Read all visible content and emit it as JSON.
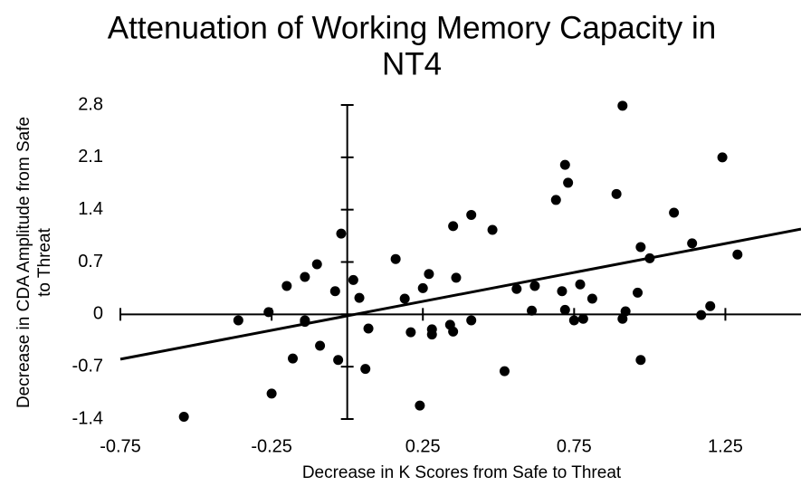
{
  "chart_data": {
    "type": "scatter",
    "title": [
      "Attenuation of Working Memory Capacity in",
      "NT4"
    ],
    "xlabel": "Decrease in K Scores from Safe to Threat",
    "ylabel": [
      "Decrease in CDA Amplitude from Safe",
      "to Threat"
    ],
    "xlim": [
      -0.75,
      1.5
    ],
    "ylim": [
      -1.4,
      2.8
    ],
    "xticks": [
      -0.75,
      -0.25,
      0.25,
      0.75,
      1.25
    ],
    "yticks": [
      2.8,
      2.1,
      1.4,
      0.7,
      0,
      -0.7,
      -1.4
    ],
    "color": "#000000",
    "x": [
      -0.54,
      -0.36,
      -0.26,
      -0.25,
      -0.2,
      -0.18,
      -0.14,
      -0.14,
      -0.14,
      -0.1,
      -0.09,
      -0.04,
      -0.03,
      -0.02,
      0.02,
      0.04,
      0.06,
      0.07,
      0.16,
      0.19,
      0.21,
      0.24,
      0.25,
      0.27,
      0.28,
      0.28,
      0.34,
      0.35,
      0.35,
      0.36,
      0.41,
      0.41,
      0.48,
      0.52,
      0.56,
      0.61,
      0.62,
      0.69,
      0.71,
      0.72,
      0.72,
      0.73,
      0.75,
      0.77,
      0.78,
      0.81,
      0.89,
      0.91,
      0.91,
      0.92,
      0.96,
      0.97,
      0.97,
      1.0,
      1.08,
      1.14,
      1.17,
      1.2,
      1.24,
      1.29
    ],
    "values": [
      -1.37,
      -0.08,
      0.03,
      -1.06,
      0.38,
      -0.59,
      0.5,
      -0.1,
      -0.08,
      0.67,
      -0.42,
      0.31,
      -0.61,
      1.08,
      0.46,
      0.22,
      -0.73,
      -0.19,
      0.74,
      0.21,
      -0.24,
      -1.22,
      0.35,
      0.54,
      -0.2,
      -0.27,
      -0.14,
      -0.23,
      1.18,
      0.49,
      1.33,
      -0.08,
      1.13,
      -0.76,
      0.34,
      0.05,
      0.38,
      1.53,
      0.31,
      2.0,
      0.06,
      1.76,
      -0.08,
      0.4,
      -0.06,
      0.21,
      1.61,
      2.79,
      -0.06,
      0.04,
      0.29,
      0.9,
      -0.61,
      0.75,
      1.36,
      0.95,
      -0.01,
      0.11,
      2.1,
      0.8
    ],
    "trendline": {
      "x": [
        -0.75,
        1.5
      ],
      "y": [
        -0.6,
        1.14
      ]
    }
  }
}
